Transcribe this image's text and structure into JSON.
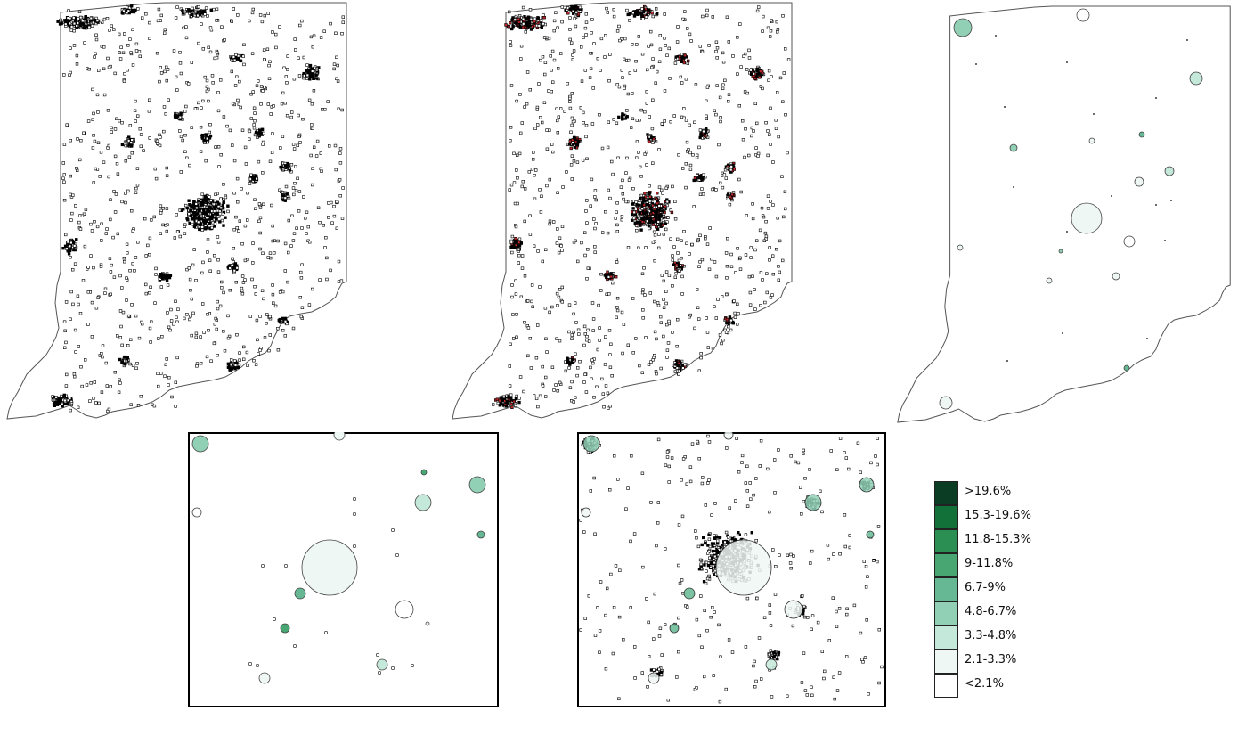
{
  "legend": {
    "items": [
      {
        "label": ">19.6%",
        "color": "#0b3d24"
      },
      {
        "label": "15.3-19.6%",
        "color": "#127139"
      },
      {
        "label": "11.8-15.3%",
        "color": "#2b8e52"
      },
      {
        "label": "9-11.8%",
        "color": "#48a672"
      },
      {
        "label": "6.7-9%",
        "color": "#65b893"
      },
      {
        "label": "4.8-6.7%",
        "color": "#92d0b6"
      },
      {
        "label": "3.3-4.8%",
        "color": "#c4e8d9"
      },
      {
        "label": "2.1-3.3%",
        "color": "#eef7f3"
      },
      {
        "label": "<2.1%",
        "color": "#ffffff"
      }
    ]
  },
  "maps": [
    {
      "name": "point-map-all",
      "kind": "points",
      "point_color": "#000000"
    },
    {
      "name": "point-map-highlighted",
      "kind": "points",
      "point_color": "#000000",
      "highlight_color": "#c0262a"
    },
    {
      "name": "proportional-circle-map",
      "kind": "circles"
    },
    {
      "name": "zoom-circles",
      "kind": "zoom-circles"
    },
    {
      "name": "zoom-points-circles",
      "kind": "zoom-points"
    }
  ]
}
